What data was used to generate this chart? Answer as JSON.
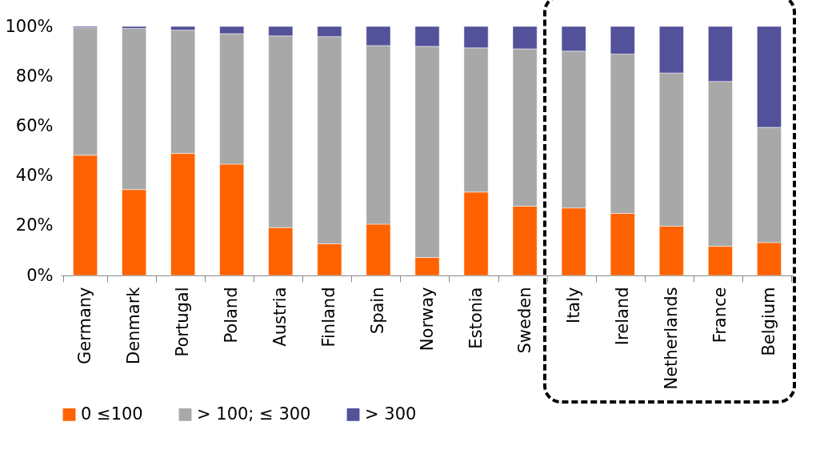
{
  "chart_data": {
    "type": "bar",
    "stacked": true,
    "categories": [
      "Germany",
      "Denmark",
      "Portugal",
      "Poland",
      "Austria",
      "Finland",
      "Spain",
      "Norway",
      "Estonia",
      "Sweden",
      "Italy",
      "Ireland",
      "Netherlands",
      "France",
      "Belgium"
    ],
    "series": [
      {
        "name": "0 ≤100",
        "color": "#ff6200",
        "values": [
          48.3,
          34.5,
          49.0,
          44.7,
          19.2,
          12.7,
          20.6,
          7.2,
          33.5,
          27.8,
          27.1,
          24.9,
          19.8,
          11.7,
          13.2
        ]
      },
      {
        "name": "> 100; ≤ 300",
        "color": "#a8a8a8",
        "values": [
          51.2,
          64.7,
          49.5,
          52.4,
          77.0,
          83.2,
          71.7,
          84.8,
          57.9,
          63.2,
          63.0,
          64.0,
          61.5,
          66.2,
          46.3
        ]
      },
      {
        "name": "> 300",
        "color": "#525199",
        "values": [
          0.5,
          0.8,
          1.5,
          2.9,
          3.8,
          4.1,
          7.7,
          8.0,
          8.6,
          9.0,
          9.9,
          11.1,
          18.7,
          22.1,
          40.5
        ]
      }
    ],
    "ylim": [
      0,
      100
    ],
    "yticks": [
      {
        "value": 0,
        "label": "0%"
      },
      {
        "value": 20,
        "label": "20%"
      },
      {
        "value": 40,
        "label": "40%"
      },
      {
        "value": 60,
        "label": "60%"
      },
      {
        "value": 80,
        "label": "80%"
      },
      {
        "value": 100,
        "label": "100%"
      }
    ],
    "grid": false,
    "legend": "bottom"
  }
}
